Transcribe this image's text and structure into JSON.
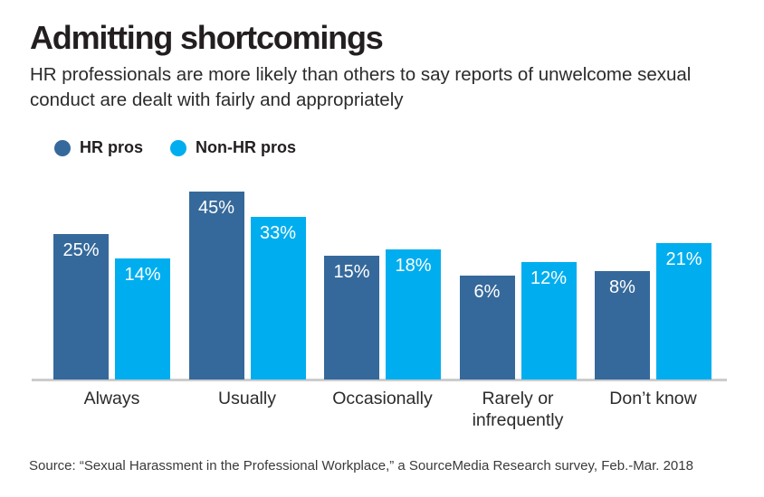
{
  "header": {
    "title": "Admitting shortcomings",
    "subtitle": "HR professionals are more likely than others to say reports of unwelcome sexual conduct are dealt with fairly and appropriately"
  },
  "legend": [
    {
      "label": "HR pros",
      "color": "#36699B"
    },
    {
      "label": "Non-HR pros",
      "color": "#00AEEF"
    }
  ],
  "chart_data": {
    "type": "bar",
    "title": "Admitting shortcomings",
    "categories": [
      "Always",
      "Usually",
      "Occasionally",
      "Rarely or infrequently",
      "Don’t know"
    ],
    "series": [
      {
        "name": "HR pros",
        "color": "#36699B",
        "values": [
          25,
          45,
          15,
          6,
          8
        ]
      },
      {
        "name": "Non-HR pros",
        "color": "#00AEEF",
        "values": [
          14,
          33,
          18,
          12,
          21
        ]
      }
    ],
    "value_label_format": "{v}%",
    "value_labels_shown": true,
    "xlabel": "",
    "ylabel": "",
    "grid": false,
    "y_axis_shown": false,
    "legend_position": "top-left",
    "value_label_color": "#ffffff",
    "baseline_color": "#cccccc"
  },
  "source": "Source: “Sexual Harassment in the Professional Workplace,” a SourceMedia Research survey, Feb.-Mar. 2018"
}
